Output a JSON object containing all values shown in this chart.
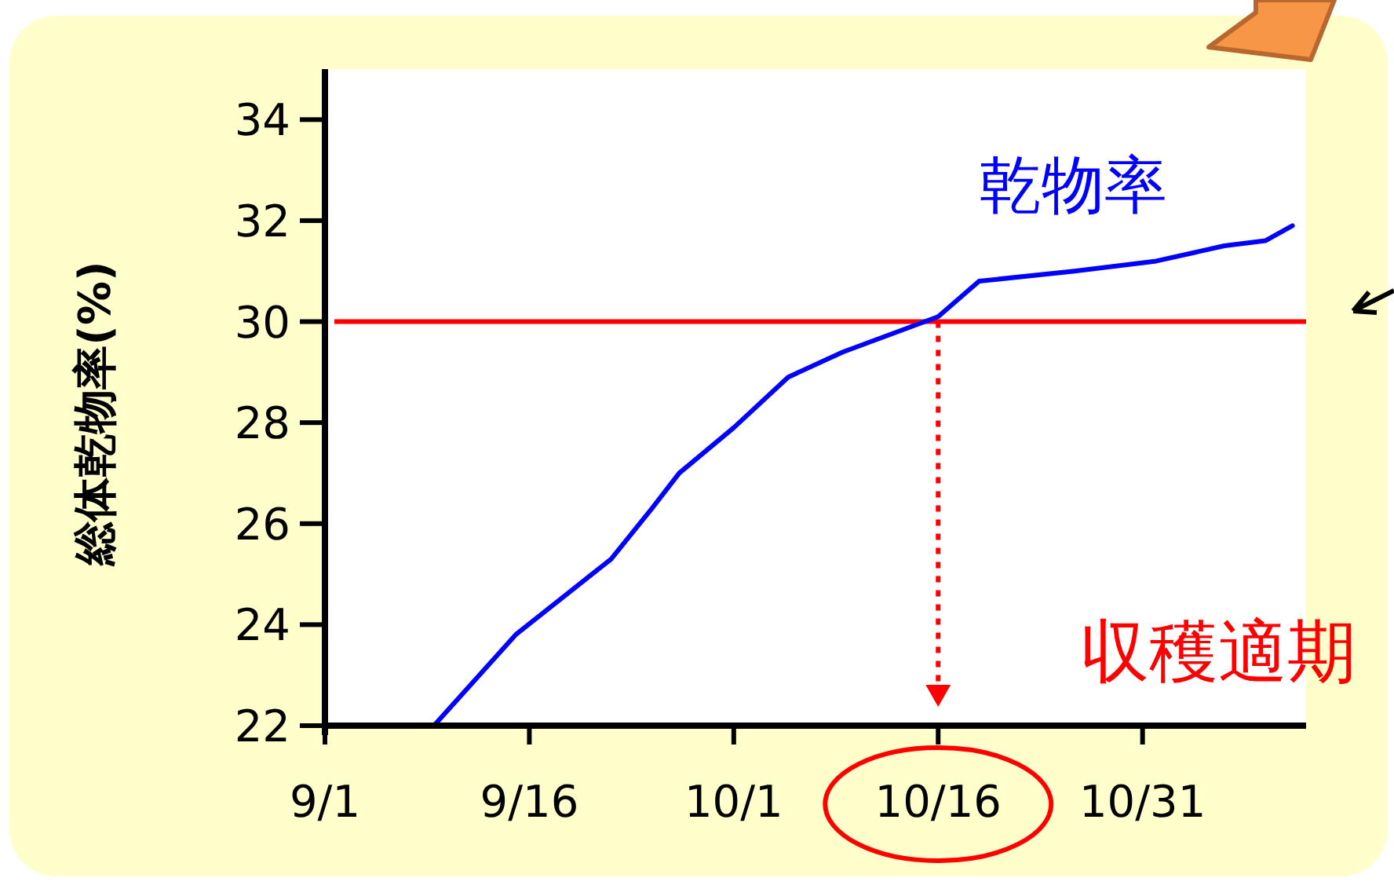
{
  "chart_data": {
    "type": "line",
    "ylabel": "総体乾物率(%)",
    "x": [
      "--09-09",
      "--09-15",
      "--09-22",
      "--09-25",
      "--09-27",
      "--10-01",
      "--10-05",
      "--10-09",
      "--10-16",
      "--10-19",
      "--10-26",
      "--11-01",
      "--11-06",
      "--11-09",
      "--11-11"
    ],
    "series": [
      {
        "name": "乾物率",
        "color": "#0000ff",
        "values": [
          22.0,
          23.8,
          25.3,
          26.3,
          27.0,
          27.9,
          28.9,
          29.4,
          30.1,
          30.8,
          31.0,
          31.2,
          31.5,
          31.6,
          31.9
        ]
      }
    ],
    "xlim": [
      "--09-01",
      "--11-12"
    ],
    "xticks": [
      {
        "value": "--09-01",
        "label": "9/1"
      },
      {
        "value": "--09-16",
        "label": "9/16"
      },
      {
        "value": "--10-01",
        "label": "10/1"
      },
      {
        "value": "--10-16",
        "label": "10/16"
      },
      {
        "value": "--10-31",
        "label": "10/31"
      }
    ],
    "ylim": [
      22,
      35
    ],
    "yticks": [
      22,
      24,
      26,
      28,
      30,
      32,
      34
    ],
    "ref_lines": [
      {
        "axis": "y",
        "value": 30,
        "color": "#ff0000",
        "line_style": "solid"
      },
      {
        "axis": "x",
        "value": "--10-16",
        "label": "収穫適期",
        "color": "#ff0000",
        "line_style": "dotted"
      }
    ]
  }
}
